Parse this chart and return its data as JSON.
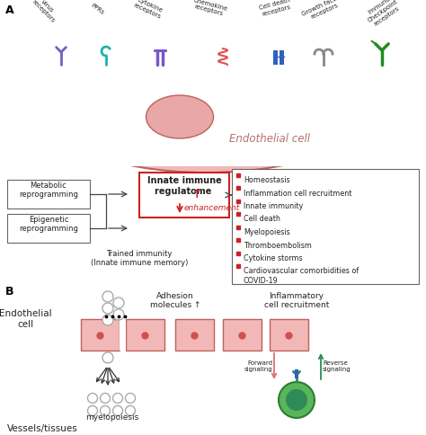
{
  "title_a": "A",
  "title_b": "B",
  "bg_color": "#ffffff",
  "cell_color": "#f2b8b8",
  "cell_edge_color": "#c0605a",
  "nucleus_color": "#e8a0a0",
  "box_red_edge": "#cc2222",
  "red_color": "#cc2222",
  "bullet_color": "#cc2222",
  "text_color": "#222222",
  "pink_arrow_color": "#e07070",
  "green_color": "#2e8b57",
  "bullet_items": [
    "Homeostasis",
    "Inflammation cell recruitment",
    "Innate immunity",
    "Cell death",
    "Myelopoiesis",
    "Thromboembolism",
    "Cytokine storms",
    "Cardiovascular comorbidities of\nCOVID-19"
  ],
  "metabolic_label": "Metabolic\nreprogramming",
  "epigenetic_label": "Epigenetic\nreprogramming",
  "trained_label": "Trained immunity\n(Innate immune memory)",
  "innate_label": "Innate immune\nregulatome ↑",
  "enhancement_label": "enhancement",
  "endothelial_label": "Endothelial cell",
  "endothelial_cell_label": "Endothelial\ncell",
  "adhesion_label": "Adhesion\nmolecules ↑",
  "inflammatory_label": "Inflammatory\ncell recruitment",
  "myelopoiesis_label": "myelopoiesis",
  "vessels_label": "Vessels/tissues",
  "forward_label": "Forward\nsignaling",
  "reverse_label": "Reverse\nsignaling"
}
